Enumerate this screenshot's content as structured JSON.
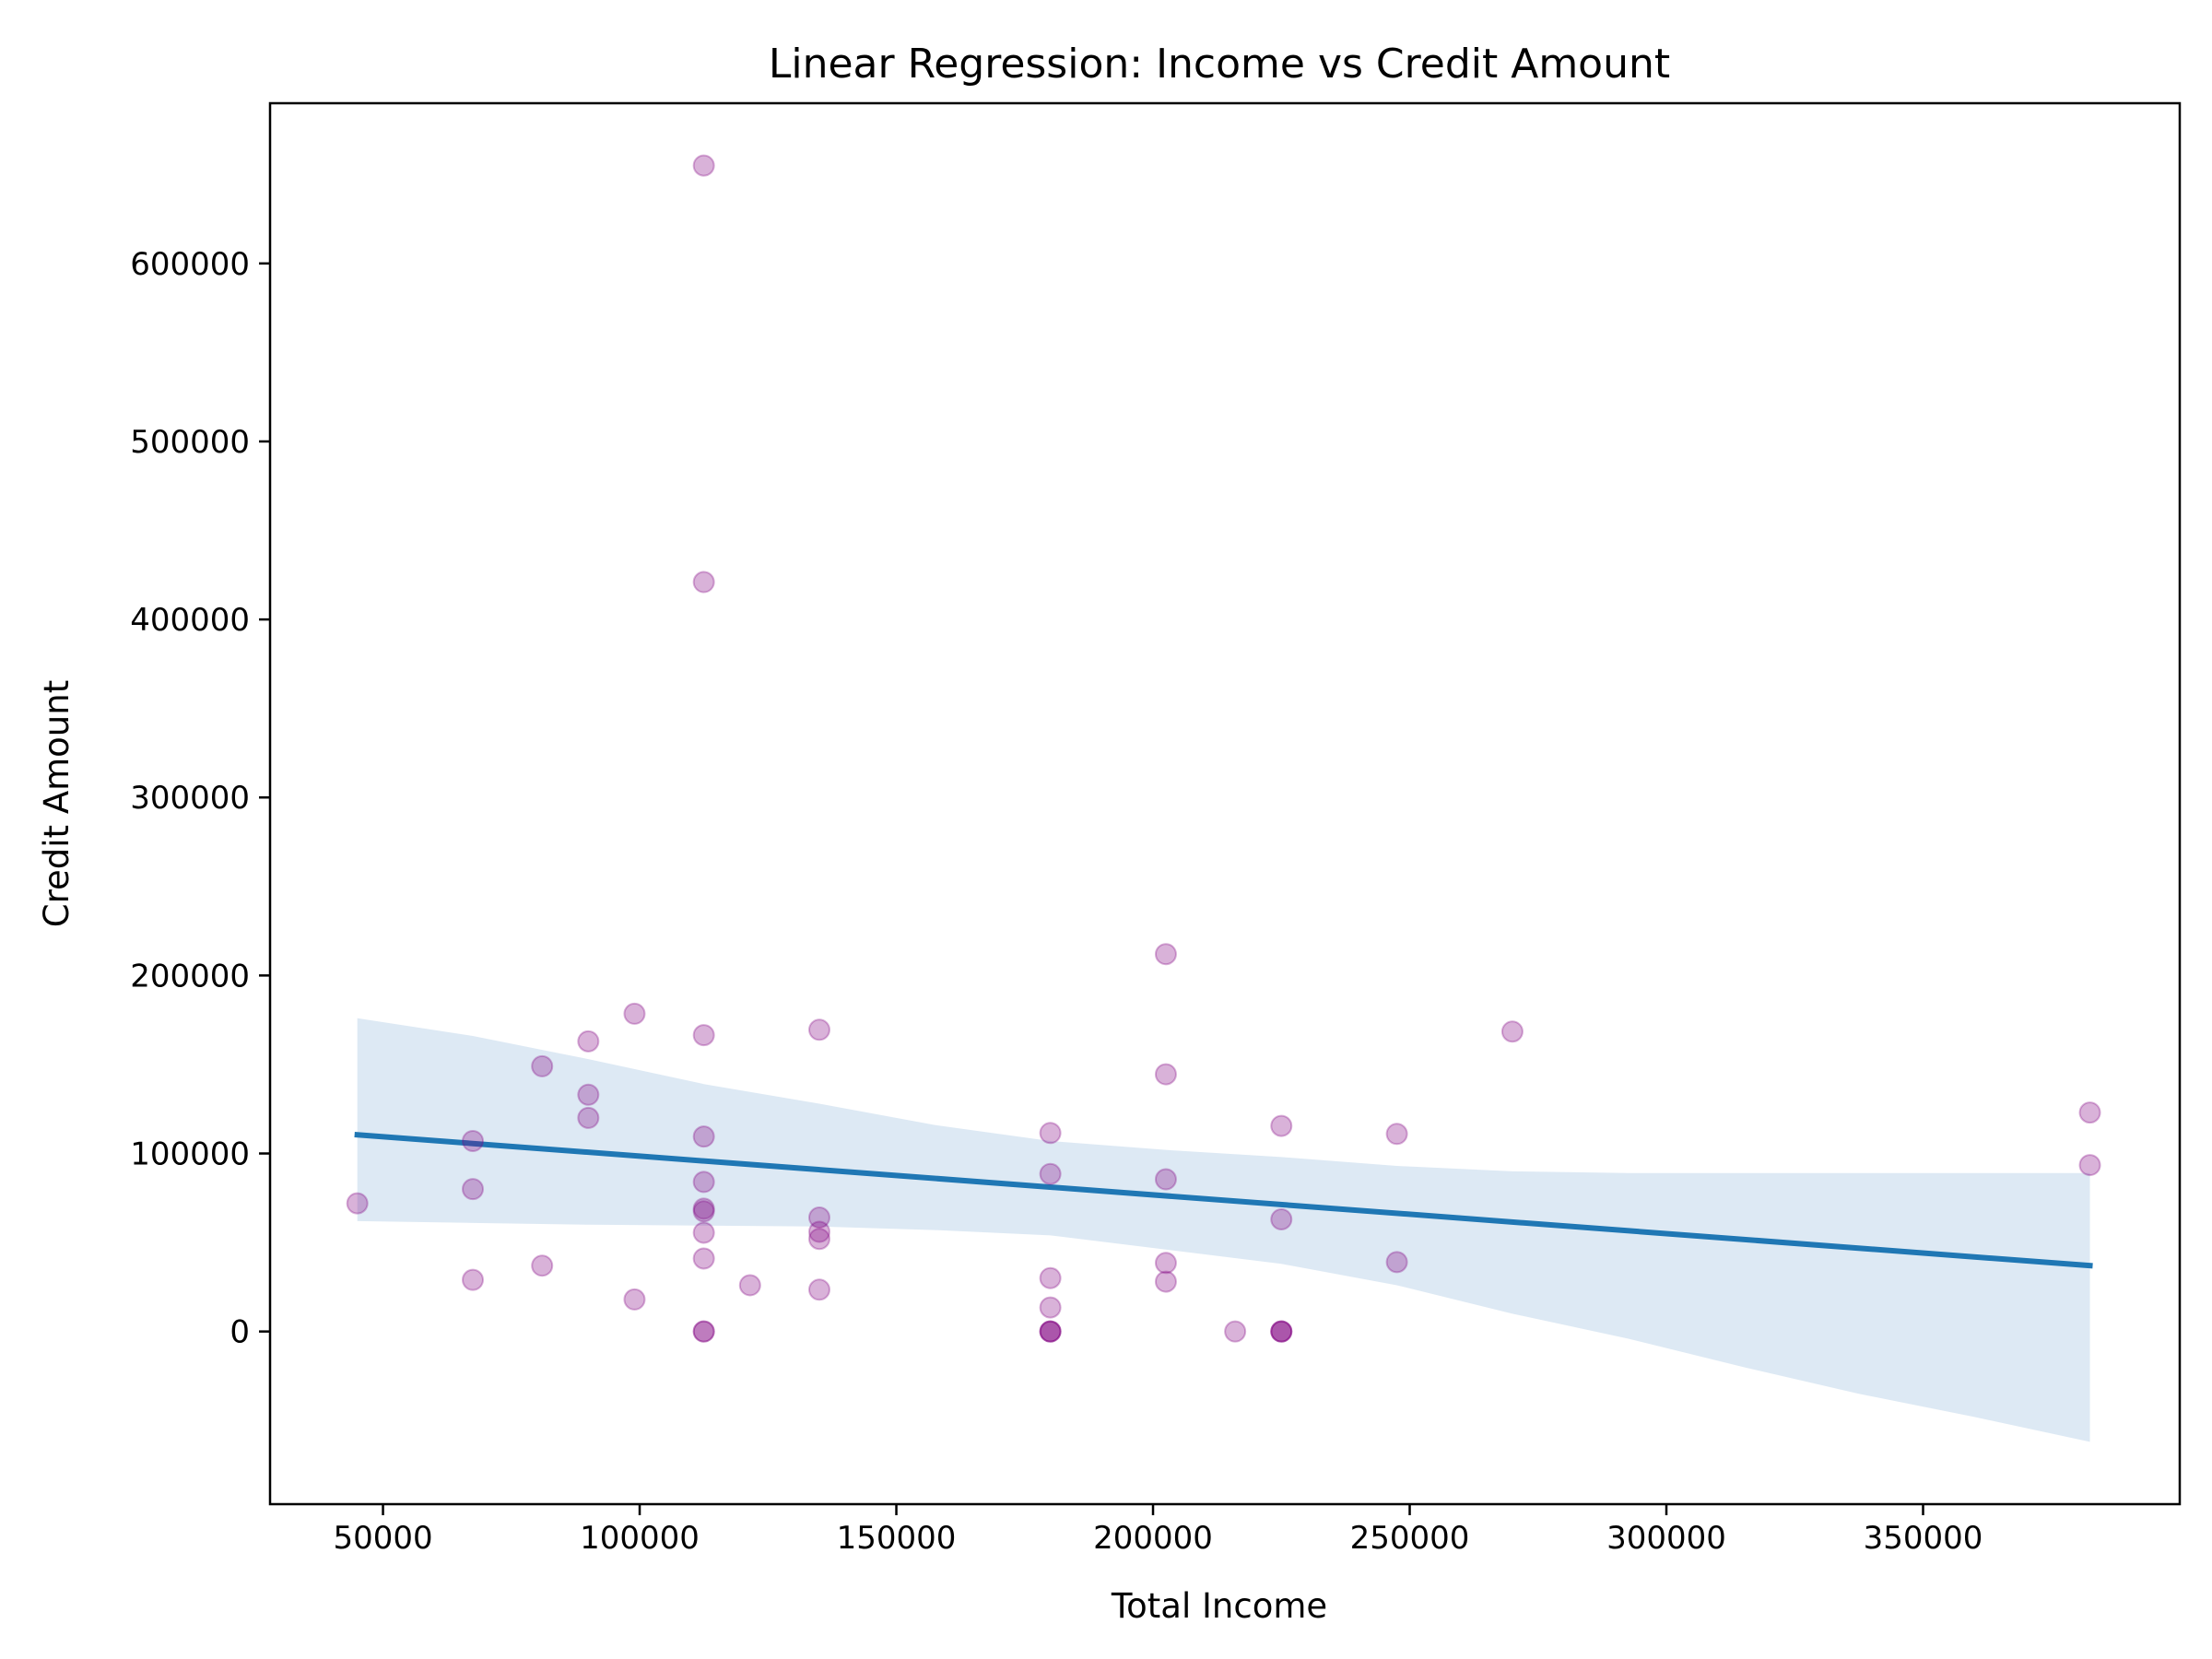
{
  "chart_data": {
    "type": "scatter",
    "title": "Linear Regression: Income vs Credit Amount",
    "xlabel": "Total Income",
    "ylabel": "Credit Amount",
    "xlim": [
      28000,
      400000
    ],
    "ylim": [
      -97000,
      690000
    ],
    "xticks": [
      50000,
      100000,
      150000,
      200000,
      250000,
      300000,
      350000
    ],
    "yticks": [
      0,
      100000,
      200000,
      300000,
      400000,
      500000,
      600000
    ],
    "grid": false,
    "legend": "none",
    "point_color": "#800080",
    "line_color": "#1f77b4",
    "band_color": "#c6dbed",
    "points": [
      [
        45000,
        72000
      ],
      [
        67500,
        107000
      ],
      [
        67500,
        80000
      ],
      [
        67500,
        29000
      ],
      [
        81000,
        149000
      ],
      [
        81000,
        37000
      ],
      [
        90000,
        163000
      ],
      [
        90000,
        133000
      ],
      [
        90000,
        120000
      ],
      [
        99000,
        178500
      ],
      [
        99000,
        18000
      ],
      [
        112500,
        655000
      ],
      [
        112500,
        421000
      ],
      [
        112500,
        166500
      ],
      [
        112500,
        109500
      ],
      [
        112500,
        84000
      ],
      [
        112500,
        69000
      ],
      [
        112500,
        67500
      ],
      [
        112500,
        55500
      ],
      [
        112500,
        41000
      ],
      [
        112500,
        0
      ],
      [
        112500,
        0
      ],
      [
        121500,
        26000
      ],
      [
        135000,
        169500
      ],
      [
        135000,
        64000
      ],
      [
        135000,
        56000
      ],
      [
        135000,
        52000
      ],
      [
        135000,
        23500
      ],
      [
        180000,
        111500
      ],
      [
        180000,
        88500
      ],
      [
        180000,
        30000
      ],
      [
        180000,
        13500
      ],
      [
        180000,
        0
      ],
      [
        180000,
        0
      ],
      [
        180000,
        0
      ],
      [
        202500,
        212000
      ],
      [
        202500,
        144500
      ],
      [
        202500,
        85500
      ],
      [
        202500,
        38500
      ],
      [
        202500,
        28000
      ],
      [
        216000,
        0
      ],
      [
        225000,
        115500
      ],
      [
        225000,
        63000
      ],
      [
        225000,
        0
      ],
      [
        225000,
        0
      ],
      [
        225000,
        0
      ],
      [
        247500,
        111000
      ],
      [
        247500,
        39000
      ],
      [
        270000,
        168500
      ],
      [
        382500,
        123000
      ],
      [
        382500,
        93500
      ]
    ],
    "regression": {
      "x": [
        45000,
        382500
      ],
      "y": [
        110500,
        37000
      ]
    },
    "confidence_band": {
      "x": [
        45000,
        67500,
        90000,
        112500,
        135000,
        157500,
        180000,
        202500,
        225000,
        247500,
        270000,
        292500,
        315000,
        337500,
        360000,
        382500
      ],
      "upper": [
        176000,
        166000,
        153000,
        139000,
        128000,
        116000,
        107000,
        102000,
        98000,
        93000,
        90000,
        89000,
        89000,
        89000,
        89000,
        89000
      ],
      "lower": [
        62000,
        61000,
        60000,
        59500,
        59000,
        57000,
        54000,
        46000,
        38000,
        26000,
        10000,
        -4000,
        -20000,
        -35000,
        -48000,
        -62000
      ]
    }
  }
}
